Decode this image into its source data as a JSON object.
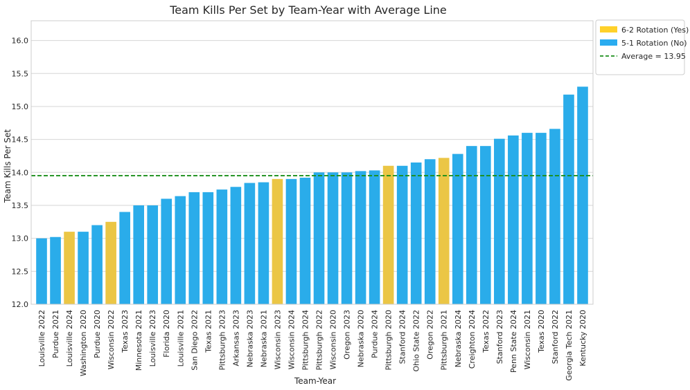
{
  "chart_data": {
    "type": "bar",
    "title": "Team Kills Per Set by Team-Year with Average Line",
    "xlabel": "Team-Year",
    "ylabel": "Team Kills Per Set",
    "ylim": [
      12.0,
      16.3
    ],
    "yticks": [
      "12.0",
      "12.5",
      "13.0",
      "13.5",
      "14.0",
      "14.5",
      "15.0",
      "15.5",
      "16.0"
    ],
    "grid": "horizontal",
    "legend_position": "outside-top-right",
    "categories": [
      "Louisville 2022",
      "Purdue 2021",
      "Louisville 2024",
      "Washington 2020",
      "Purdue 2020",
      "Wisconsin 2022",
      "Texas 2023",
      "Minnesota 2021",
      "Louisville 2023",
      "Florida 2020",
      "Louisville 2021",
      "San Diego 2022",
      "Texas 2021",
      "Pittsburgh 2023",
      "Arkansas 2023",
      "Nebraska 2023",
      "Nebraska 2021",
      "Wisconsin 2023",
      "Wisconsin 2024",
      "Pittsburgh 2024",
      "Pittsburgh 2022",
      "Wisconsin 2020",
      "Oregon 2023",
      "Nebraska 2020",
      "Purdue 2024",
      "Pittsburgh 2020",
      "Stanford 2024",
      "Ohio State 2022",
      "Oregon 2022",
      "Pittsburgh 2021",
      "Nebraska 2024",
      "Creighton 2024",
      "Texas 2022",
      "Stanford 2023",
      "Penn State 2024",
      "Wisconsin 2021",
      "Texas 2020",
      "Stanford 2022",
      "Georgia Tech 2021",
      "Kentucky 2020"
    ],
    "values": [
      13.0,
      13.02,
      13.1,
      13.1,
      13.2,
      13.25,
      13.4,
      13.5,
      13.5,
      13.6,
      13.64,
      13.7,
      13.7,
      13.74,
      13.78,
      13.84,
      13.85,
      13.9,
      13.9,
      13.92,
      14.0,
      14.0,
      14.0,
      14.02,
      14.03,
      14.1,
      14.1,
      14.15,
      14.2,
      14.22,
      14.28,
      14.4,
      14.4,
      14.51,
      14.56,
      14.6,
      14.6,
      14.66,
      15.18,
      15.3
    ],
    "rotation_62": [
      false,
      false,
      true,
      false,
      false,
      true,
      false,
      false,
      false,
      false,
      false,
      false,
      false,
      false,
      false,
      false,
      false,
      true,
      false,
      false,
      false,
      false,
      false,
      false,
      false,
      true,
      false,
      false,
      false,
      true,
      false,
      false,
      false,
      false,
      false,
      false,
      false,
      false,
      false,
      false
    ],
    "average": 13.95,
    "legend": [
      {
        "label": "6-2 Rotation (Yes)",
        "color": "#ffd12a",
        "kind": "patch"
      },
      {
        "label": "5-1 Rotation (No)",
        "color": "#2aacf0",
        "kind": "patch"
      },
      {
        "label": "Average = 13.95",
        "color": "#1a8f1a",
        "kind": "dashed-line"
      }
    ],
    "colors": {
      "yes": "#ebc645",
      "no": "#2aacea",
      "average": "#1a8f1a",
      "grid": "#d6d6d6",
      "frame": "#cccccc"
    }
  }
}
